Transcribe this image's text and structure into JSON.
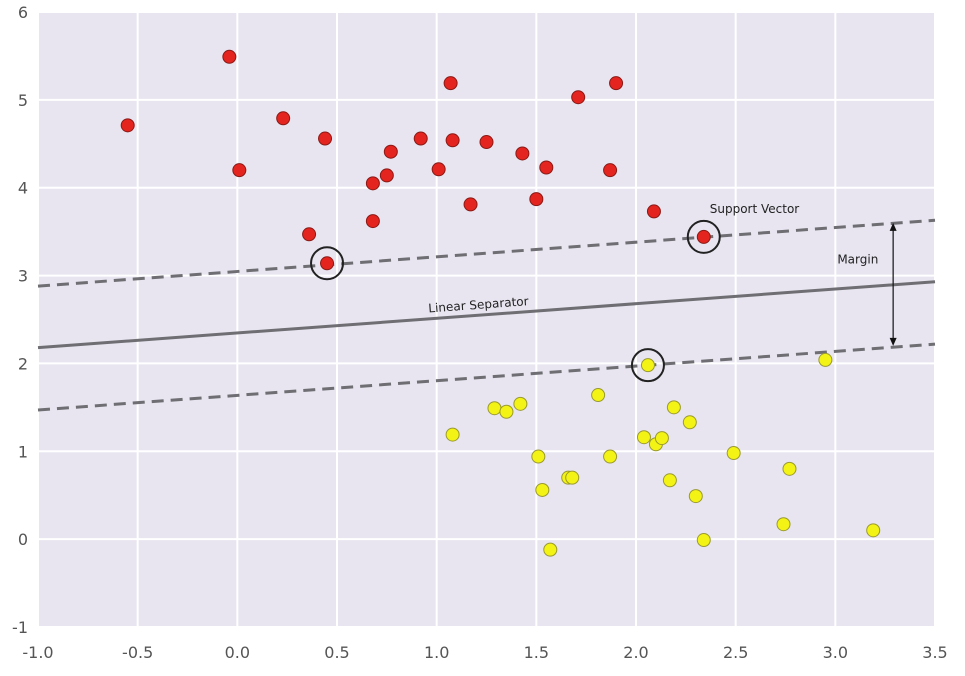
{
  "chart_data": {
    "type": "scatter",
    "title": "",
    "xlabel": "",
    "ylabel": "",
    "xlim": [
      -1.0,
      3.5
    ],
    "ylim": [
      -1,
      6
    ],
    "grid": true,
    "x_ticks": [
      "-1.0",
      "-0.5",
      "0.0",
      "0.5",
      "1.0",
      "1.5",
      "2.0",
      "2.5",
      "3.0",
      "3.5"
    ],
    "y_ticks": [
      "-1",
      "0",
      "1",
      "2",
      "3",
      "4",
      "5",
      "6"
    ],
    "series": [
      {
        "color": "#e3241f",
        "points": [
          [
            -0.55,
            4.71
          ],
          [
            -0.04,
            5.49
          ],
          [
            0.01,
            4.2
          ],
          [
            0.23,
            4.79
          ],
          [
            0.44,
            4.56
          ],
          [
            0.36,
            3.47
          ],
          [
            0.45,
            3.14
          ],
          [
            0.68,
            4.05
          ],
          [
            0.68,
            3.62
          ],
          [
            0.75,
            4.14
          ],
          [
            0.77,
            4.41
          ],
          [
            0.92,
            4.56
          ],
          [
            1.01,
            4.21
          ],
          [
            1.07,
            5.19
          ],
          [
            1.08,
            4.54
          ],
          [
            1.17,
            3.81
          ],
          [
            1.25,
            4.52
          ],
          [
            1.43,
            4.39
          ],
          [
            1.5,
            3.87
          ],
          [
            1.55,
            4.23
          ],
          [
            1.71,
            5.03
          ],
          [
            1.87,
            4.2
          ],
          [
            1.9,
            5.19
          ],
          [
            2.09,
            3.73
          ],
          [
            2.34,
            3.44
          ]
        ]
      },
      {
        "color": "#f3f315",
        "points": [
          [
            1.08,
            1.19
          ],
          [
            1.29,
            1.49
          ],
          [
            1.35,
            1.45
          ],
          [
            1.42,
            1.54
          ],
          [
            1.51,
            0.94
          ],
          [
            1.53,
            0.56
          ],
          [
            1.57,
            -0.12
          ],
          [
            1.66,
            0.7
          ],
          [
            1.68,
            0.7
          ],
          [
            1.81,
            1.64
          ],
          [
            1.87,
            0.94
          ],
          [
            2.04,
            1.16
          ],
          [
            2.06,
            1.98
          ],
          [
            2.1,
            1.08
          ],
          [
            2.13,
            1.15
          ],
          [
            2.17,
            0.67
          ],
          [
            2.19,
            1.5
          ],
          [
            2.27,
            1.33
          ],
          [
            2.3,
            0.49
          ],
          [
            2.34,
            -0.01
          ],
          [
            2.49,
            0.98
          ],
          [
            2.74,
            0.17
          ],
          [
            2.77,
            0.8
          ],
          [
            2.95,
            2.04
          ],
          [
            3.19,
            0.1
          ]
        ]
      }
    ],
    "support_vectors": [
      [
        0.45,
        3.14
      ],
      [
        2.34,
        3.44
      ],
      [
        2.06,
        1.98
      ]
    ],
    "separator": {
      "x": [
        -1.0,
        3.5
      ],
      "y": [
        2.18,
        2.93
      ]
    },
    "upper_margin": {
      "x": [
        -1.0,
        3.5
      ],
      "y": [
        2.88,
        3.63
      ]
    },
    "lower_margin": {
      "x": [
        -1.0,
        3.5
      ],
      "y": [
        1.47,
        2.22
      ]
    },
    "margin_arrow": {
      "x": 3.29,
      "y_from": 2.2,
      "y_to": 3.6
    },
    "annotations": [
      {
        "text": "Support Vector",
        "x": 2.37,
        "y": 3.71
      },
      {
        "text": "Margin",
        "x": 3.01,
        "y": 3.14
      },
      {
        "text": "Linear Separator",
        "x": 0.96,
        "y": 2.58
      }
    ],
    "colors": {
      "plot_background": "#e8e5f0",
      "grid": "#ffffff",
      "line": "#6e6e73"
    }
  }
}
